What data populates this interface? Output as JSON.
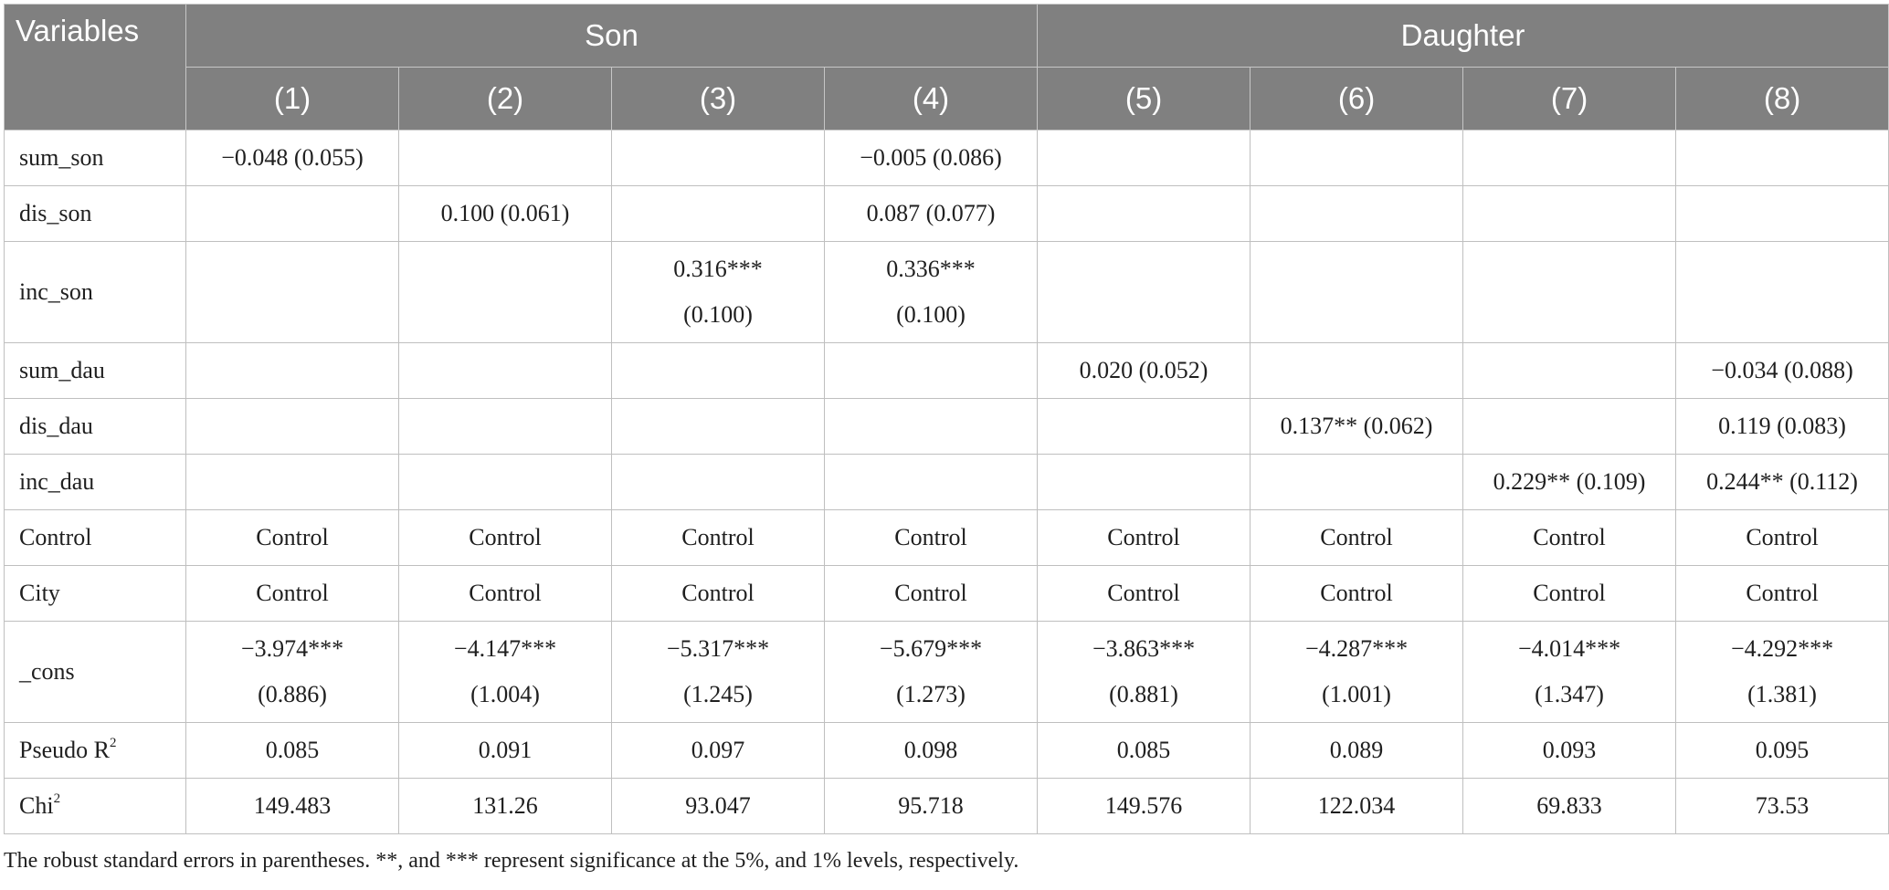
{
  "header": {
    "variables": "Variables",
    "groups": [
      "Son",
      "Daughter"
    ],
    "columns": [
      "(1)",
      "(2)",
      "(3)",
      "(4)",
      "(5)",
      "(6)",
      "(7)",
      "(8)"
    ]
  },
  "rows": [
    {
      "label": "sum_son",
      "cells": [
        "−0.048 (0.055)",
        "",
        "",
        "−0.005 (0.086)",
        "",
        "",
        "",
        ""
      ]
    },
    {
      "label": "dis_son",
      "cells": [
        "",
        "0.100 (0.061)",
        "",
        "0.087 (0.077)",
        "",
        "",
        "",
        ""
      ]
    },
    {
      "label": "inc_son",
      "cells": [
        "",
        "",
        "0.316***|(0.100)",
        "0.336***|(0.100)",
        "",
        "",
        "",
        ""
      ]
    },
    {
      "label": "sum_dau",
      "cells": [
        "",
        "",
        "",
        "",
        "0.020 (0.052)",
        "",
        "",
        "−0.034 (0.088)"
      ]
    },
    {
      "label": "dis_dau",
      "cells": [
        "",
        "",
        "",
        "",
        "",
        "0.137** (0.062)",
        "",
        "0.119 (0.083)"
      ]
    },
    {
      "label": "inc_dau",
      "cells": [
        "",
        "",
        "",
        "",
        "",
        "",
        "0.229** (0.109)",
        "0.244** (0.112)"
      ]
    },
    {
      "label": "Control",
      "cells": [
        "Control",
        "Control",
        "Control",
        "Control",
        "Control",
        "Control",
        "Control",
        "Control"
      ]
    },
    {
      "label": "City",
      "cells": [
        "Control",
        "Control",
        "Control",
        "Control",
        "Control",
        "Control",
        "Control",
        "Control"
      ]
    },
    {
      "label": "_cons",
      "cells": [
        "−3.974***|(0.886)",
        "−4.147***|(1.004)",
        "−5.317***|(1.245)",
        "−5.679***|(1.273)",
        "−3.863***|(0.881)",
        "−4.287***|(1.001)",
        "−4.014***|(1.347)",
        "−4.292***|(1.381)"
      ]
    },
    {
      "label": "Pseudo R",
      "label_sup": "2",
      "cells": [
        "0.085",
        "0.091",
        "0.097",
        "0.098",
        "0.085",
        "0.089",
        "0.093",
        "0.095"
      ]
    },
    {
      "label": "Chi",
      "label_sup": "2",
      "cells": [
        "149.483",
        "131.26",
        "93.047",
        "95.718",
        "149.576",
        "122.034",
        "69.833",
        "73.53"
      ]
    }
  ],
  "footnote": "The robust standard errors in parentheses. **, and *** represent significance at the 5%, and 1% levels, respectively."
}
